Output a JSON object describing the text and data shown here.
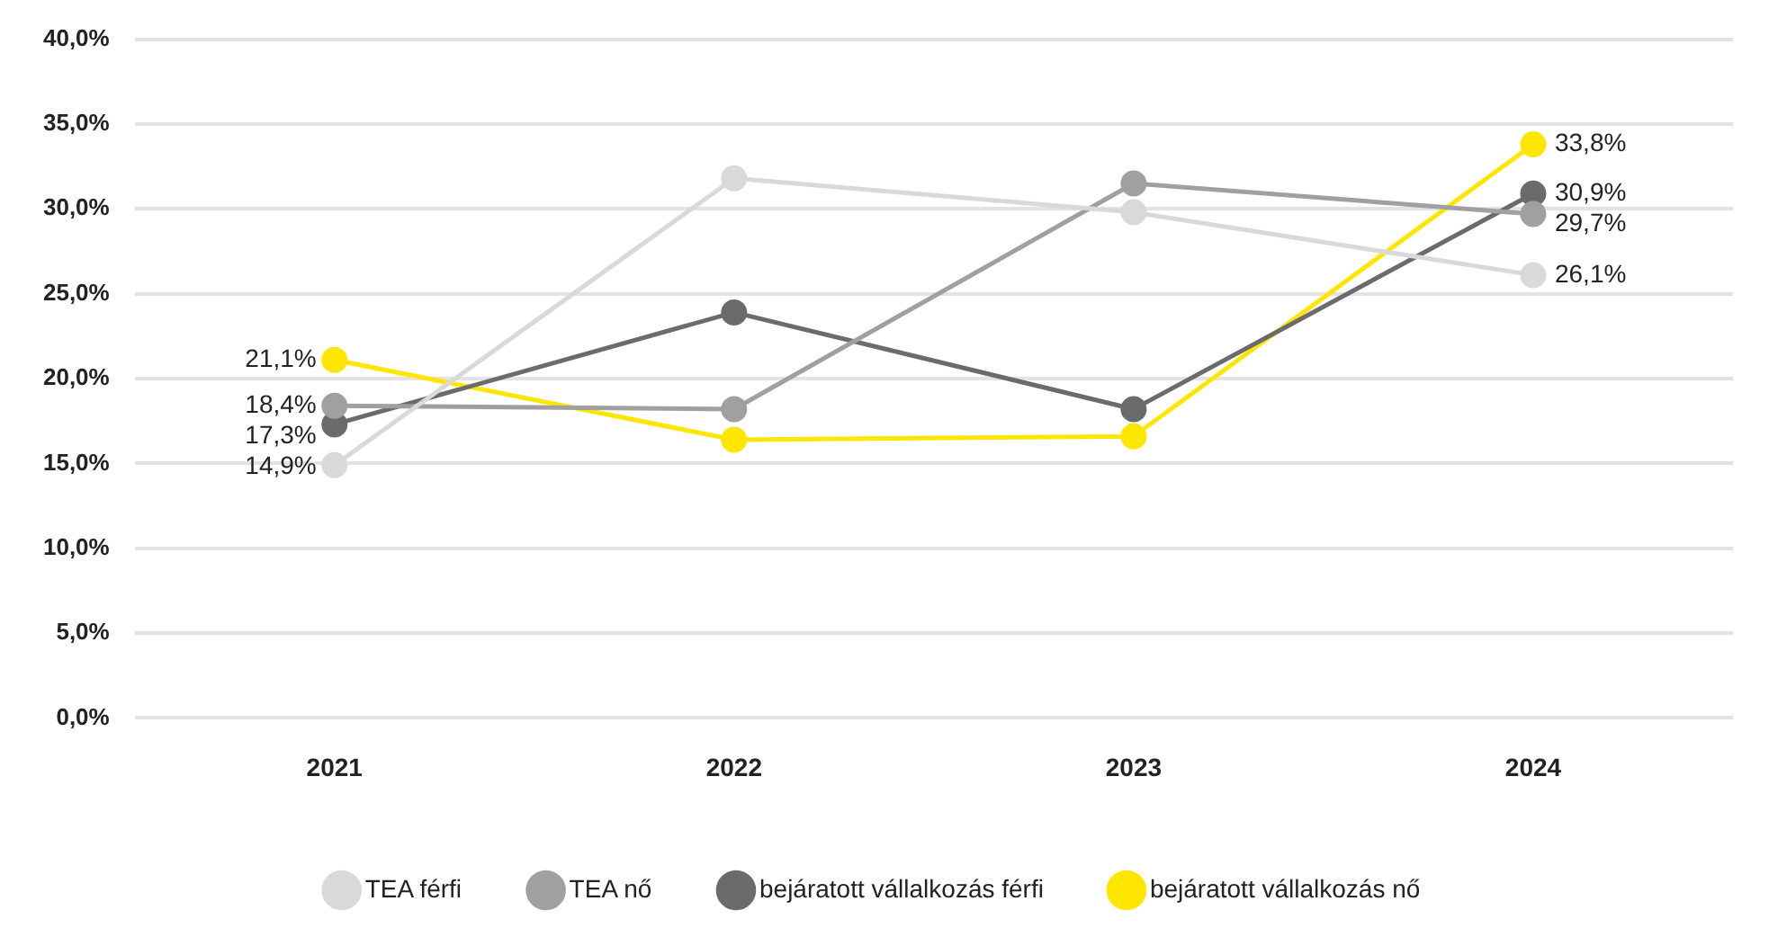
{
  "chart_data": {
    "type": "line",
    "categories": [
      "2021",
      "2022",
      "2023",
      "2024"
    ],
    "series": [
      {
        "name": "TEA férfi",
        "color": "#d9d9d9",
        "values": [
          14.9,
          31.8,
          29.8,
          26.1
        ],
        "value_labels": [
          "14,9%",
          null,
          null,
          "26,1%"
        ]
      },
      {
        "name": "TEA nő",
        "color": "#a0a0a0",
        "values": [
          18.4,
          18.2,
          31.5,
          29.7
        ],
        "value_labels": [
          "18,4%",
          null,
          null,
          "29,7%"
        ]
      },
      {
        "name": "bejáratott vállalkozás férfi",
        "color": "#6b6b6b",
        "values": [
          17.3,
          23.9,
          18.2,
          30.9
        ],
        "value_labels": [
          "17,3%",
          null,
          null,
          "30,9%"
        ]
      },
      {
        "name": "bejáratott vállalkozás nő",
        "color": "#ffe600",
        "values": [
          21.1,
          16.4,
          16.6,
          33.8
        ],
        "value_labels": [
          "21,1%",
          null,
          null,
          "33,8%"
        ]
      }
    ],
    "ylim": [
      0,
      40
    ],
    "yticks": [
      {
        "value": 0,
        "label": "0,0%"
      },
      {
        "value": 5,
        "label": "5,0%"
      },
      {
        "value": 10,
        "label": "10,0%"
      },
      {
        "value": 15,
        "label": "15,0%"
      },
      {
        "value": 20,
        "label": "20,0%"
      },
      {
        "value": 25,
        "label": "25,0%"
      },
      {
        "value": 30,
        "label": "30,0%"
      },
      {
        "value": 35,
        "label": "35,0%"
      },
      {
        "value": 40,
        "label": "40,0%"
      }
    ],
    "grid": "y",
    "legend": "bottom",
    "marker": "circle",
    "line_style": "solid"
  }
}
